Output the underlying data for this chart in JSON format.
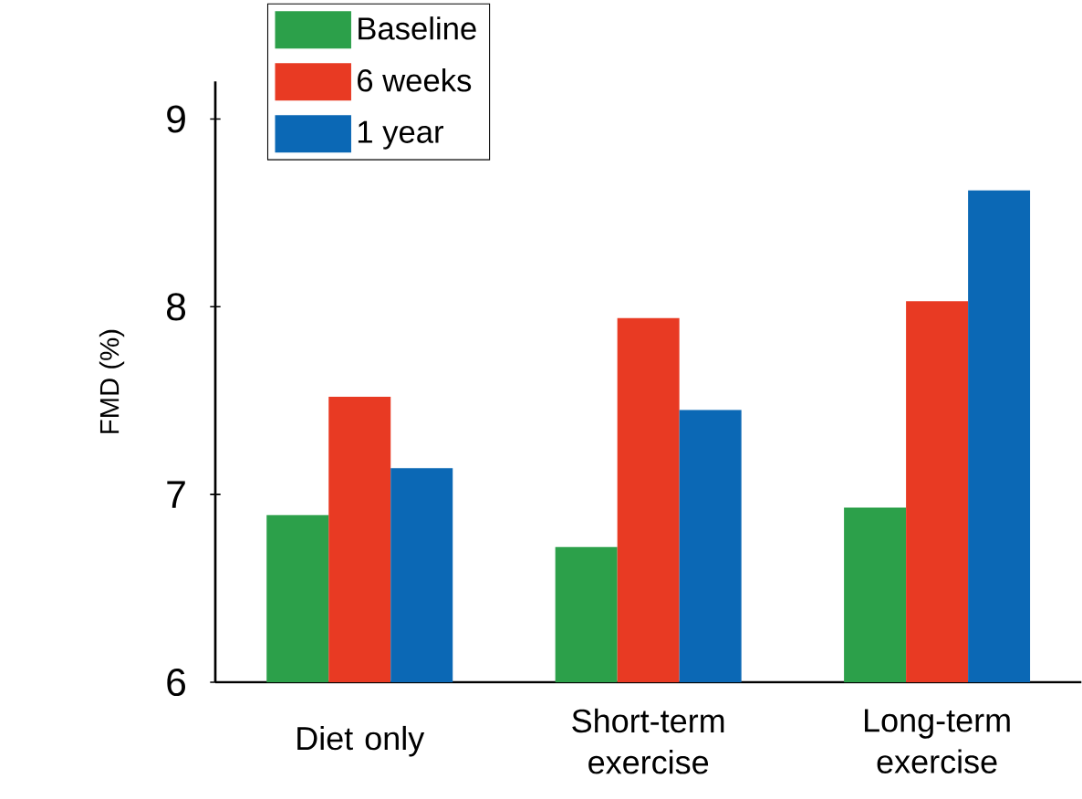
{
  "chart_data": {
    "type": "bar",
    "ylabel": "FMD (%)",
    "categories": [
      "Diet only",
      "Short-term exercise",
      "Long-term exercise"
    ],
    "series": [
      {
        "name": "Baseline",
        "color": "#2ca04a",
        "values": [
          6.89,
          6.72,
          6.93
        ]
      },
      {
        "name": "6  weeks",
        "color": "#e83a23",
        "values": [
          7.52,
          7.94,
          8.03
        ]
      },
      {
        "name": "1 year",
        "color": "#0b68b5",
        "values": [
          7.14,
          7.45,
          8.62
        ]
      }
    ],
    "ylim": [
      6,
      9.2
    ],
    "yticks": [
      6,
      7,
      8,
      9
    ],
    "grid": false,
    "legend": "top left"
  }
}
